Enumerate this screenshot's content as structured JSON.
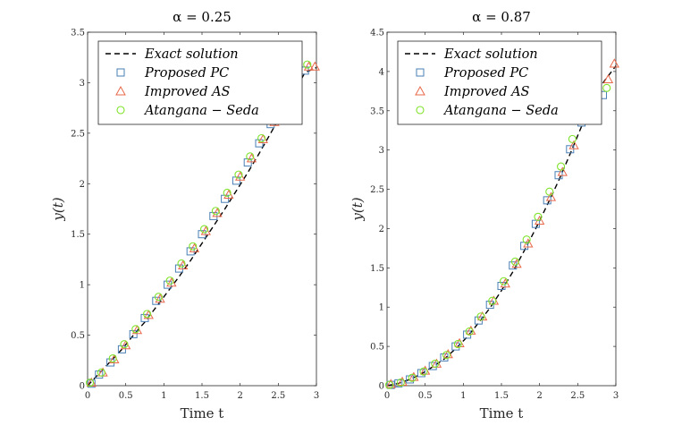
{
  "chart_data": [
    {
      "type": "line",
      "title": "α = 0.25",
      "xlabel": "Time t",
      "ylabel": "y(t)",
      "xlim": [
        0,
        3
      ],
      "ylim": [
        0,
        3.5
      ],
      "xticks": [
        0,
        0.5,
        1,
        1.5,
        2,
        2.5,
        3
      ],
      "xtick_labels": [
        "0",
        "0.5",
        "1",
        "1.5",
        "2",
        "2.5",
        "3"
      ],
      "yticks": [
        0,
        0.5,
        1,
        1.5,
        2,
        2.5,
        3,
        3.5
      ],
      "ytick_labels": [
        "0",
        "0.5",
        "1",
        "1.5",
        "2",
        "2.5",
        "3",
        "3.5"
      ],
      "grid": false,
      "legend_position": "top-left",
      "series": [
        {
          "name": "Exact solution",
          "style": "dashed-line",
          "color": "#000000",
          "x": [
            0,
            0.15,
            0.3,
            0.45,
            0.6,
            0.75,
            0.9,
            1.05,
            1.2,
            1.35,
            1.5,
            1.65,
            1.8,
            1.95,
            2.1,
            2.25,
            2.4,
            2.55,
            2.7,
            2.85,
            3.0
          ],
          "y": [
            0,
            0.12,
            0.24,
            0.36,
            0.5,
            0.63,
            0.78,
            0.93,
            1.08,
            1.24,
            1.41,
            1.58,
            1.75,
            1.93,
            2.11,
            2.3,
            2.5,
            2.7,
            2.9,
            3.1,
            3.15
          ]
        },
        {
          "name": "Proposed PC",
          "marker": "square",
          "color": "#4a7fb5",
          "x": [
            0.05,
            0.15,
            0.3,
            0.45,
            0.6,
            0.75,
            0.9,
            1.05,
            1.2,
            1.35,
            1.5,
            1.65,
            1.8,
            1.95,
            2.1,
            2.25,
            2.4,
            2.55,
            2.7,
            2.85
          ],
          "y": [
            0.02,
            0.11,
            0.23,
            0.36,
            0.51,
            0.67,
            0.84,
            1.0,
            1.16,
            1.33,
            1.5,
            1.68,
            1.85,
            2.03,
            2.21,
            2.4,
            2.59,
            2.76,
            2.95,
            3.12
          ]
        },
        {
          "name": "Improved AS",
          "marker": "triangle",
          "color": "#e8684a",
          "x": [
            0.05,
            0.2,
            0.35,
            0.5,
            0.65,
            0.8,
            0.95,
            1.1,
            1.25,
            1.4,
            1.55,
            1.7,
            1.85,
            2.0,
            2.15,
            2.3,
            2.45,
            2.6,
            2.75,
            2.9,
            2.98
          ],
          "y": [
            0.03,
            0.13,
            0.26,
            0.4,
            0.55,
            0.7,
            0.86,
            1.02,
            1.19,
            1.36,
            1.53,
            1.71,
            1.89,
            2.07,
            2.25,
            2.44,
            2.61,
            2.8,
            2.98,
            3.16,
            3.16
          ]
        },
        {
          "name": "Atangana − Seda",
          "marker": "circle",
          "color": "#7fe32a",
          "x": [
            0.03,
            0.18,
            0.33,
            0.48,
            0.63,
            0.78,
            0.93,
            1.08,
            1.23,
            1.38,
            1.53,
            1.68,
            1.83,
            1.98,
            2.13,
            2.28,
            2.43,
            2.58,
            2.73,
            2.88
          ],
          "y": [
            0.03,
            0.13,
            0.27,
            0.41,
            0.56,
            0.71,
            0.88,
            1.04,
            1.21,
            1.38,
            1.55,
            1.73,
            1.91,
            2.09,
            2.27,
            2.45,
            2.63,
            2.82,
            3.0,
            3.18
          ]
        }
      ]
    },
    {
      "type": "line",
      "title": "α = 0.87",
      "xlabel": "Time t",
      "ylabel": "y(t)",
      "xlim": [
        0,
        3
      ],
      "ylim": [
        0,
        4.5
      ],
      "xticks": [
        0,
        0.5,
        1,
        1.5,
        2,
        2.5,
        3
      ],
      "xtick_labels": [
        "0",
        "0.5",
        "1",
        "1.5",
        "2",
        "2.5",
        "3"
      ],
      "yticks": [
        0,
        0.5,
        1,
        1.5,
        2,
        2.5,
        3,
        3.5,
        4,
        4.5
      ],
      "ytick_labels": [
        "0",
        "0.5",
        "1",
        "1.5",
        "2",
        "2.5",
        "3",
        "3.5",
        "4",
        "4.5"
      ],
      "grid": false,
      "legend_position": "top-left",
      "series": [
        {
          "name": "Exact solution",
          "style": "dashed-line",
          "color": "#000000",
          "x": [
            0,
            0.15,
            0.3,
            0.45,
            0.6,
            0.75,
            0.9,
            1.05,
            1.2,
            1.35,
            1.5,
            1.65,
            1.8,
            1.95,
            2.1,
            2.25,
            2.4,
            2.55,
            2.7,
            2.85,
            3.0
          ],
          "y": [
            0,
            0.03,
            0.08,
            0.15,
            0.24,
            0.34,
            0.47,
            0.62,
            0.8,
            0.99,
            1.21,
            1.45,
            1.72,
            2.0,
            2.3,
            2.61,
            2.95,
            3.3,
            3.66,
            3.88,
            4.07
          ]
        },
        {
          "name": "Proposed PC",
          "marker": "square",
          "color": "#4a7fb5",
          "x": [
            0.05,
            0.15,
            0.3,
            0.45,
            0.6,
            0.75,
            0.9,
            1.05,
            1.2,
            1.35,
            1.5,
            1.65,
            1.8,
            1.95,
            2.1,
            2.25,
            2.4,
            2.55,
            2.7,
            2.83
          ],
          "y": [
            0.01,
            0.03,
            0.08,
            0.16,
            0.25,
            0.36,
            0.5,
            0.65,
            0.83,
            1.03,
            1.27,
            1.53,
            1.78,
            2.06,
            2.36,
            2.68,
            3.01,
            3.35,
            3.69,
            3.7
          ]
        },
        {
          "name": "Improved AS",
          "marker": "triangle",
          "color": "#e8684a",
          "x": [
            0.05,
            0.2,
            0.35,
            0.5,
            0.65,
            0.8,
            0.95,
            1.1,
            1.25,
            1.4,
            1.55,
            1.7,
            1.85,
            2.0,
            2.15,
            2.3,
            2.45,
            2.6,
            2.75,
            2.9,
            2.98
          ],
          "y": [
            0.02,
            0.05,
            0.11,
            0.19,
            0.28,
            0.4,
            0.54,
            0.7,
            0.88,
            1.08,
            1.3,
            1.55,
            1.81,
            2.1,
            2.4,
            2.72,
            3.06,
            3.4,
            3.78,
            3.9,
            4.1
          ]
        },
        {
          "name": "Atangana − Seda",
          "marker": "circle",
          "color": "#7fe32a",
          "x": [
            0.03,
            0.18,
            0.33,
            0.48,
            0.63,
            0.78,
            0.93,
            1.08,
            1.23,
            1.38,
            1.53,
            1.68,
            1.83,
            1.98,
            2.13,
            2.28,
            2.43,
            2.58,
            2.73,
            2.88
          ],
          "y": [
            0.01,
            0.04,
            0.1,
            0.18,
            0.28,
            0.39,
            0.53,
            0.69,
            0.88,
            1.08,
            1.33,
            1.58,
            1.86,
            2.15,
            2.47,
            2.79,
            3.14,
            3.48,
            3.85,
            3.79
          ]
        }
      ]
    }
  ]
}
